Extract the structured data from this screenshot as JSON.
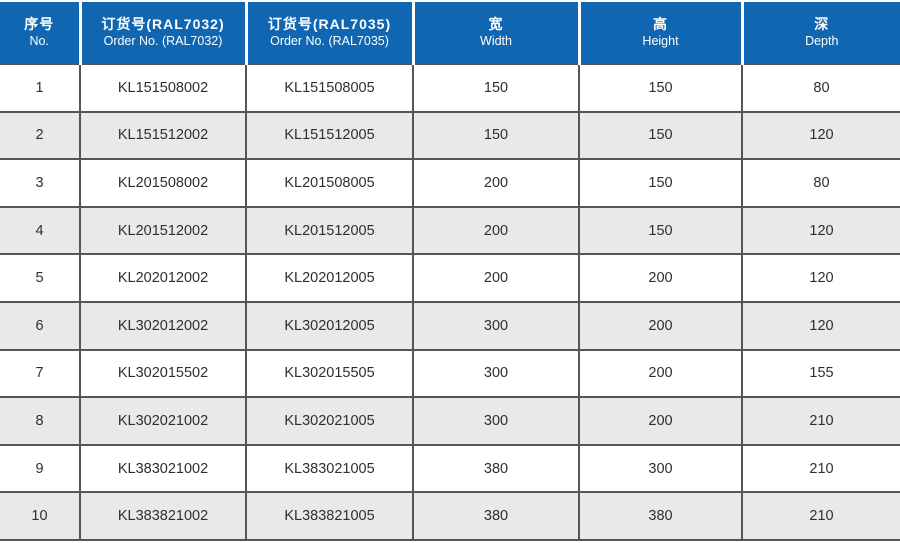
{
  "table": {
    "columns": [
      {
        "key": "no",
        "zh": "序号",
        "en": "No."
      },
      {
        "key": "order_ral7032",
        "zh": "订货号(RAL7032)",
        "en": "Order No. (RAL7032)"
      },
      {
        "key": "order_ral7035",
        "zh": "订货号(RAL7035)",
        "en": "Order No. (RAL7035)"
      },
      {
        "key": "width",
        "zh": "宽",
        "en": "Width"
      },
      {
        "key": "height",
        "zh": "高",
        "en": "Height"
      },
      {
        "key": "depth",
        "zh": "深",
        "en": "Depth"
      }
    ],
    "rows": [
      [
        "1",
        "KL151508002",
        "KL151508005",
        "150",
        "150",
        "80"
      ],
      [
        "2",
        "KL151512002",
        "KL151512005",
        "150",
        "150",
        "120"
      ],
      [
        "3",
        "KL201508002",
        "KL201508005",
        "200",
        "150",
        "80"
      ],
      [
        "4",
        "KL201512002",
        "KL201512005",
        "200",
        "150",
        "120"
      ],
      [
        "5",
        "KL202012002",
        "KL202012005",
        "200",
        "200",
        "120"
      ],
      [
        "6",
        "KL302012002",
        "KL302012005",
        "300",
        "200",
        "120"
      ],
      [
        "7",
        "KL302015502",
        "KL302015505",
        "300",
        "200",
        "155"
      ],
      [
        "8",
        "KL302021002",
        "KL302021005",
        "300",
        "200",
        "210"
      ],
      [
        "9",
        "KL383021002",
        "KL383021005",
        "380",
        "300",
        "210"
      ],
      [
        "10",
        "KL383821002",
        "KL383821005",
        "380",
        "380",
        "210"
      ]
    ]
  },
  "colors": {
    "header_bg": "#1066b0",
    "header_text": "#ffffff",
    "row_bg": "#ffffff",
    "row_alt_bg": "#eae9e7",
    "border": "#555555",
    "body_text": "#2f2f2f"
  }
}
